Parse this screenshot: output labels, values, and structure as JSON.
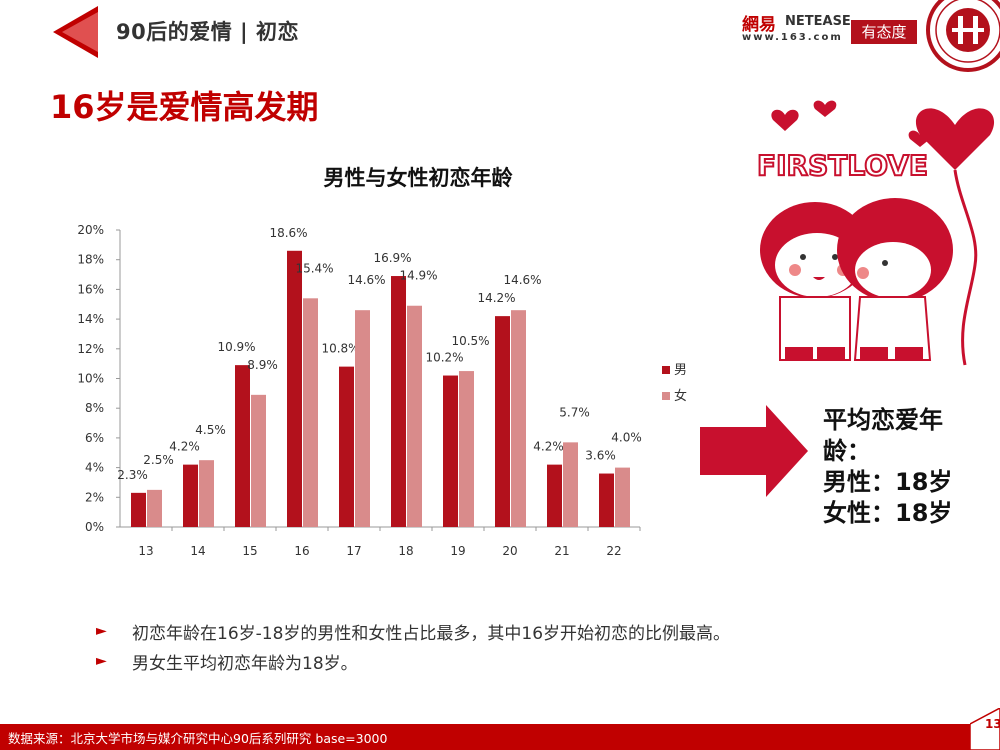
{
  "header": {
    "title": "90后的爱情 | 初恋"
  },
  "logos": {
    "netease_main": "網易",
    "netease_en": "NETEASE",
    "netease_url": "www.163.com",
    "attitude": "有态度"
  },
  "page_title": "16岁是爱情高发期",
  "chart_data": {
    "type": "bar",
    "title": "男性与女性初恋年龄",
    "categories": [
      "13",
      "14",
      "15",
      "16",
      "17",
      "18",
      "19",
      "20",
      "21",
      "22"
    ],
    "series": [
      {
        "name": "男",
        "values": [
          2.3,
          4.2,
          10.9,
          18.6,
          10.8,
          16.9,
          10.2,
          14.2,
          4.2,
          3.6
        ],
        "labels": [
          "2.3%",
          "4.2%",
          "10.9%",
          "18.6%",
          "10.8%",
          "16.9%",
          "10.2%",
          "14.2%",
          "4.2%",
          "3.6%"
        ],
        "color": "#b3111c"
      },
      {
        "name": "女",
        "values": [
          2.5,
          4.5,
          8.9,
          15.4,
          14.6,
          14.9,
          10.5,
          14.6,
          5.7,
          4.0
        ],
        "labels": [
          "2.5%",
          "4.5%",
          "8.9%",
          "15.4%",
          "14.6%",
          "14.9%",
          "10.5%",
          "14.6%",
          "5.7%",
          "4.0%"
        ],
        "color": "#d98b8b"
      }
    ],
    "yticks": [
      "0%",
      "2%",
      "4%",
      "6%",
      "8%",
      "10%",
      "12%",
      "14%",
      "16%",
      "18%",
      "20%"
    ],
    "ylim": [
      0,
      20
    ],
    "legend": "right",
    "grid": false
  },
  "bullets": [
    "初恋年龄在16岁-18岁的男性和女性占比最多，其中16岁开始初恋的比例最高。",
    "男女生平均初恋年龄为18岁。"
  ],
  "average": {
    "label1": "平均恋爱年",
    "label2": "龄：",
    "male": "男性：18岁",
    "female": "女性：18岁"
  },
  "illustration": {
    "text": "FIRSTLOVE"
  },
  "footer": {
    "source": "数据来源：北京大学市场与媒介研究中心90后系列研究 base=3000"
  },
  "page_number": "13",
  "colors": {
    "accent": "#c00000",
    "male": "#b3111c",
    "female": "#d98b8b"
  }
}
